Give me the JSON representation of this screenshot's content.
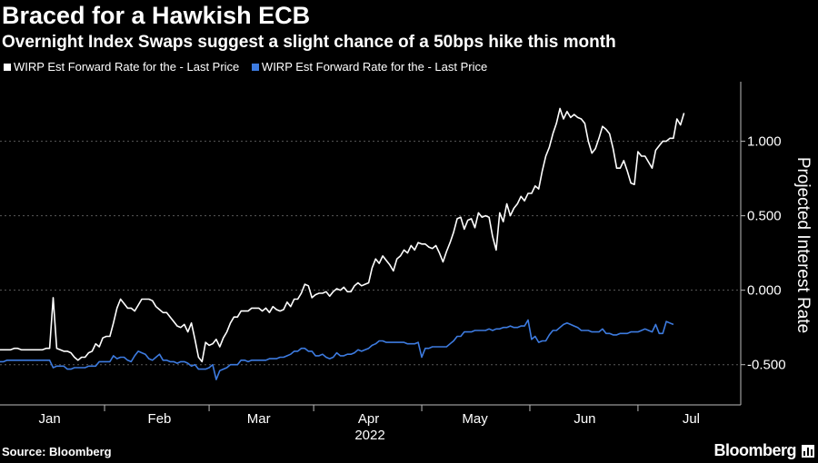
{
  "source": "Source: Bloomberg",
  "brand": "Bloomberg",
  "colors": {
    "background": "#000000",
    "series_a": "#ffffff",
    "series_b": "#3d7be0",
    "grid": "#5a5a5a",
    "axis": "#bbbbbb"
  },
  "chart_data": {
    "type": "line",
    "title": "Braced for a Hawkish ECB",
    "subtitle": "Overnight Index Swaps suggest a slight chance of a 50bps hike this month",
    "ylabel": "Projected Interest Rate",
    "year_label": "2022",
    "x_start": 0,
    "x_step": 1,
    "x_ticks": [
      {
        "label": "Jan",
        "pos": 14
      },
      {
        "label": "Feb",
        "pos": 45
      },
      {
        "label": "Mar",
        "pos": 73
      },
      {
        "label": "Apr",
        "pos": 104
      },
      {
        "label": "May",
        "pos": 134
      },
      {
        "label": "Jun",
        "pos": 165
      },
      {
        "label": "Jul",
        "pos": 195
      }
    ],
    "y_ticks": [
      {
        "label": "1.000",
        "value": 1.0
      },
      {
        "label": "0.500",
        "value": 0.5
      },
      {
        "label": "0.000",
        "value": 0.0
      },
      {
        "label": "-0.500",
        "value": -0.5
      }
    ],
    "xlim": [
      0,
      209
    ],
    "ylim": [
      -0.77,
      1.4
    ],
    "grid": true,
    "series": [
      {
        "name": "WIRP Est Forward Rate for the - Last Price",
        "color": "#ffffff",
        "values": [
          -0.4,
          -0.4,
          -0.4,
          -0.4,
          -0.39,
          -0.39,
          -0.4,
          -0.4,
          -0.4,
          -0.4,
          -0.4,
          -0.4,
          -0.4,
          -0.39,
          -0.39,
          -0.05,
          -0.39,
          -0.4,
          -0.41,
          -0.41,
          -0.42,
          -0.45,
          -0.47,
          -0.45,
          -0.45,
          -0.42,
          -0.41,
          -0.36,
          -0.38,
          -0.32,
          -0.31,
          -0.31,
          -0.22,
          -0.12,
          -0.06,
          -0.09,
          -0.12,
          -0.12,
          -0.14,
          -0.1,
          -0.06,
          -0.06,
          -0.06,
          -0.07,
          -0.11,
          -0.13,
          -0.15,
          -0.15,
          -0.18,
          -0.21,
          -0.24,
          -0.25,
          -0.23,
          -0.28,
          -0.22,
          -0.33,
          -0.45,
          -0.48,
          -0.35,
          -0.37,
          -0.36,
          -0.33,
          -0.38,
          -0.32,
          -0.28,
          -0.22,
          -0.18,
          -0.18,
          -0.14,
          -0.14,
          -0.14,
          -0.12,
          -0.12,
          -0.12,
          -0.14,
          -0.12,
          -0.15,
          -0.11,
          -0.13,
          -0.14,
          -0.13,
          -0.08,
          -0.11,
          -0.06,
          -0.06,
          -0.02,
          0.04,
          0.03,
          -0.05,
          -0.03,
          -0.02,
          -0.02,
          -0.01,
          -0.04,
          -0.01,
          0.01,
          -0.0,
          0.02,
          -0.01,
          -0.01,
          0.03,
          0.05,
          0.03,
          0.04,
          0.05,
          0.15,
          0.21,
          0.18,
          0.23,
          0.2,
          0.17,
          0.13,
          0.21,
          0.23,
          0.27,
          0.25,
          0.3,
          0.27,
          0.32,
          0.31,
          0.31,
          0.29,
          0.28,
          0.3,
          0.25,
          0.19,
          0.26,
          0.32,
          0.39,
          0.48,
          0.49,
          0.41,
          0.47,
          0.48,
          0.42,
          0.52,
          0.49,
          0.5,
          0.49,
          0.36,
          0.27,
          0.52,
          0.46,
          0.58,
          0.5,
          0.55,
          0.58,
          0.63,
          0.6,
          0.65,
          0.65,
          0.7,
          0.68,
          0.8,
          0.9,
          0.96,
          1.05,
          1.12,
          1.22,
          1.15,
          1.2,
          1.16,
          1.18,
          1.16,
          1.15,
          1.12,
          1.0,
          0.92,
          0.95,
          1.02,
          1.1,
          1.08,
          1.05,
          0.95,
          0.82,
          0.82,
          0.87,
          0.8,
          0.72,
          0.71,
          0.93,
          0.9,
          0.9,
          0.86,
          0.82,
          0.94,
          0.97,
          1.0,
          1.0,
          1.02,
          1.02,
          1.15,
          1.11,
          1.19
        ]
      },
      {
        "name": "WIRP Est Forward Rate for the - Last Price",
        "color": "#3d7be0",
        "values": [
          -0.48,
          -0.48,
          -0.47,
          -0.47,
          -0.47,
          -0.47,
          -0.47,
          -0.47,
          -0.47,
          -0.47,
          -0.47,
          -0.47,
          -0.47,
          -0.47,
          -0.47,
          -0.52,
          -0.51,
          -0.51,
          -0.51,
          -0.53,
          -0.53,
          -0.52,
          -0.52,
          -0.52,
          -0.52,
          -0.51,
          -0.51,
          -0.51,
          -0.48,
          -0.48,
          -0.48,
          -0.48,
          -0.44,
          -0.46,
          -0.45,
          -0.45,
          -0.47,
          -0.48,
          -0.44,
          -0.41,
          -0.42,
          -0.43,
          -0.46,
          -0.47,
          -0.45,
          -0.43,
          -0.47,
          -0.47,
          -0.48,
          -0.48,
          -0.49,
          -0.48,
          -0.48,
          -0.49,
          -0.51,
          -0.5,
          -0.53,
          -0.53,
          -0.53,
          -0.52,
          -0.5,
          -0.6,
          -0.54,
          -0.53,
          -0.52,
          -0.5,
          -0.5,
          -0.5,
          -0.47,
          -0.47,
          -0.48,
          -0.47,
          -0.47,
          -0.47,
          -0.47,
          -0.47,
          -0.46,
          -0.46,
          -0.46,
          -0.45,
          -0.45,
          -0.44,
          -0.43,
          -0.41,
          -0.41,
          -0.39,
          -0.39,
          -0.41,
          -0.41,
          -0.44,
          -0.44,
          -0.43,
          -0.45,
          -0.46,
          -0.45,
          -0.42,
          -0.44,
          -0.44,
          -0.43,
          -0.43,
          -0.42,
          -0.4,
          -0.41,
          -0.4,
          -0.39,
          -0.37,
          -0.36,
          -0.34,
          -0.34,
          -0.35,
          -0.35,
          -0.35,
          -0.35,
          -0.35,
          -0.35,
          -0.36,
          -0.36,
          -0.36,
          -0.35,
          -0.45,
          -0.39,
          -0.39,
          -0.38,
          -0.38,
          -0.38,
          -0.38,
          -0.38,
          -0.36,
          -0.34,
          -0.31,
          -0.31,
          -0.28,
          -0.28,
          -0.28,
          -0.27,
          -0.27,
          -0.27,
          -0.27,
          -0.26,
          -0.27,
          -0.26,
          -0.26,
          -0.25,
          -0.25,
          -0.24,
          -0.25,
          -0.25,
          -0.24,
          -0.24,
          -0.2,
          -0.33,
          -0.31,
          -0.35,
          -0.34,
          -0.34,
          -0.3,
          -0.27,
          -0.27,
          -0.25,
          -0.23,
          -0.22,
          -0.23,
          -0.24,
          -0.25,
          -0.27,
          -0.27,
          -0.27,
          -0.28,
          -0.28,
          -0.28,
          -0.26,
          -0.29,
          -0.29,
          -0.3,
          -0.3,
          -0.29,
          -0.29,
          -0.29,
          -0.28,
          -0.28,
          -0.28,
          -0.27,
          -0.26,
          -0.27,
          -0.28,
          -0.23,
          -0.29,
          -0.29,
          -0.21,
          -0.22,
          -0.23
        ]
      }
    ]
  }
}
